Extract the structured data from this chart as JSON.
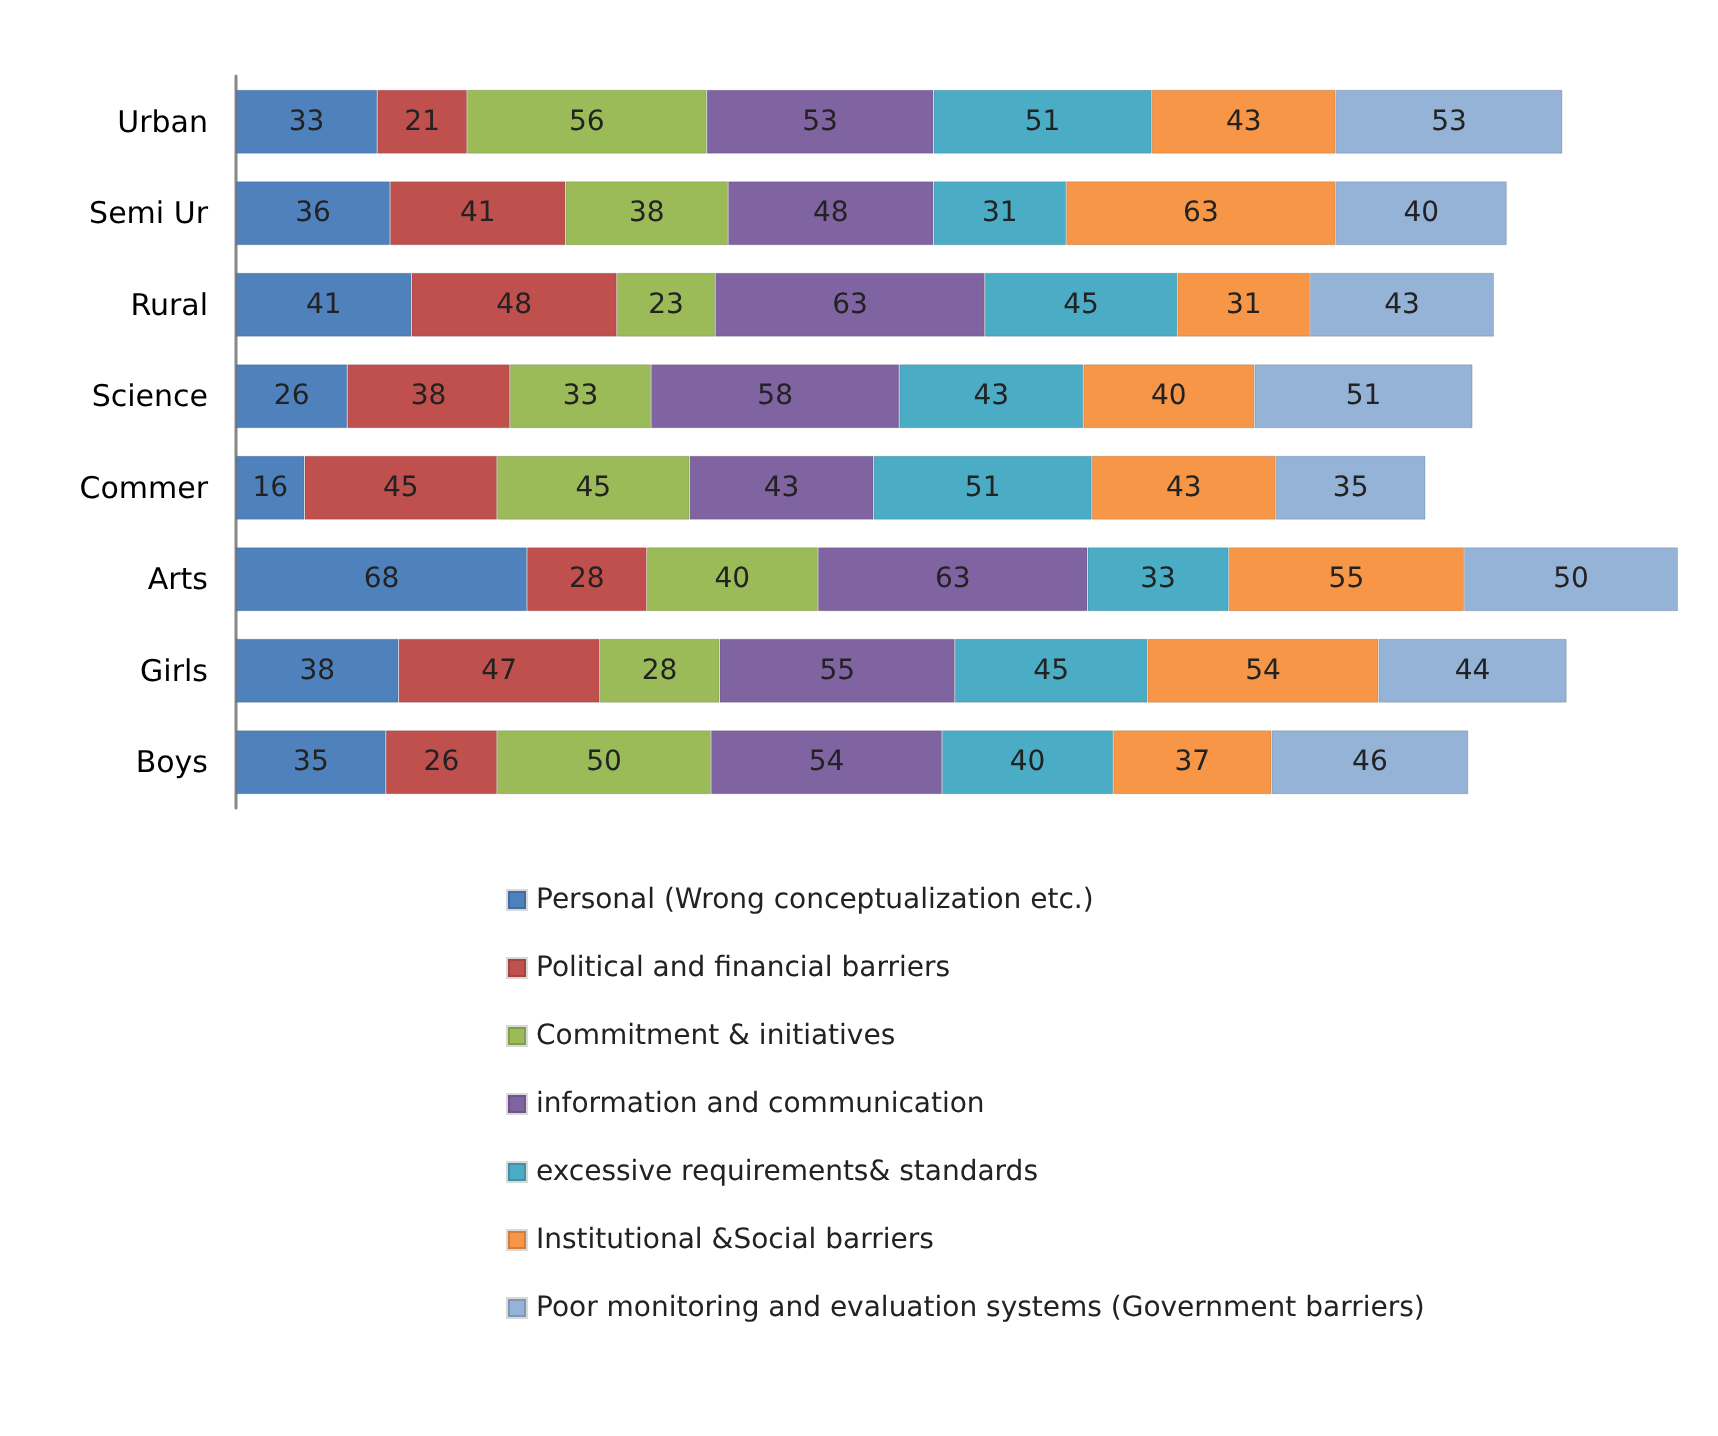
{
  "chart_data": {
    "type": "bar",
    "orientation": "horizontal",
    "stacked": true,
    "data_labels": true,
    "legend": "bottom",
    "tick_labels": "y",
    "categories": [
      "Urban",
      "Semi Ur",
      "Rural",
      "Science",
      "Commer",
      "Arts",
      "Girls",
      "Boys"
    ],
    "series": [
      {
        "name": "Personal (Wrong conceptualization etc.)",
        "color": "#4f81bd",
        "values": [
          33,
          36,
          41,
          26,
          16,
          68,
          38,
          35
        ]
      },
      {
        "name": "Political and financial barriers",
        "color": "#c0504d",
        "values": [
          21,
          41,
          48,
          38,
          45,
          28,
          47,
          26
        ]
      },
      {
        "name": "Commitment & initiatives",
        "color": "#9bbb59",
        "values": [
          56,
          38,
          23,
          33,
          45,
          40,
          28,
          50
        ]
      },
      {
        "name": "information and communication",
        "color": "#8064a2",
        "values": [
          53,
          48,
          63,
          58,
          43,
          63,
          55,
          54
        ]
      },
      {
        "name": "excessive requirements& standards",
        "color": "#4bacc6",
        "values": [
          51,
          31,
          45,
          43,
          51,
          33,
          45,
          40
        ]
      },
      {
        "name": "Institutional &Social barriers",
        "color": "#f79646",
        "values": [
          43,
          63,
          31,
          40,
          43,
          55,
          54,
          37
        ]
      },
      {
        "name": "Poor monitoring and evaluation systems (Government barriers)",
        "color": "#95b3d7",
        "values": [
          53,
          40,
          43,
          51,
          35,
          50,
          44,
          46
        ]
      }
    ]
  }
}
